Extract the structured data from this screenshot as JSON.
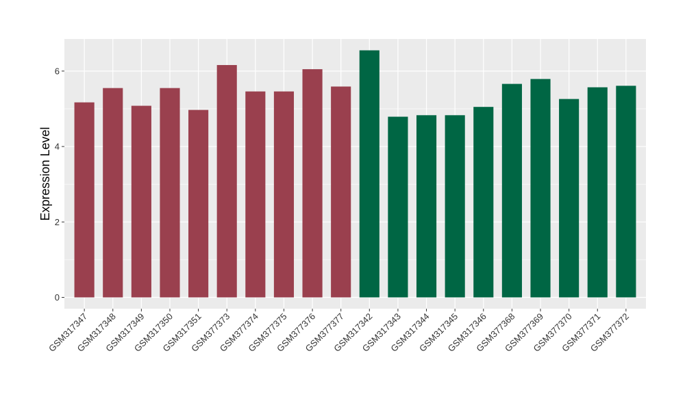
{
  "chart_data": {
    "type": "bar",
    "ylabel": "Expression Level",
    "xlabel": "",
    "title": "",
    "ylim": [
      -0.3,
      6.85
    ],
    "yticks": [
      0,
      2,
      4,
      6
    ],
    "grid": true,
    "panel_background": "#EBEBEB",
    "grid_color": "#FFFFFF",
    "categories": [
      "GSM317347",
      "GSM317348",
      "GSM317349",
      "GSM317350",
      "GSM317351",
      "GSM377373",
      "GSM377374",
      "GSM377375",
      "GSM377376",
      "GSM377377",
      "GSM317342",
      "GSM317343",
      "GSM317344",
      "GSM317345",
      "GSM317346",
      "GSM377368",
      "GSM377369",
      "GSM377370",
      "GSM377371",
      "GSM377372"
    ],
    "values": [
      5.17,
      5.55,
      5.08,
      5.55,
      4.97,
      6.16,
      5.46,
      5.46,
      6.05,
      5.59,
      6.55,
      4.79,
      4.83,
      4.83,
      5.05,
      5.66,
      5.79,
      5.26,
      5.57,
      5.61
    ],
    "group_colors": [
      "#9A404E",
      "#9A404E",
      "#9A404E",
      "#9A404E",
      "#9A404E",
      "#9A404E",
      "#9A404E",
      "#9A404E",
      "#9A404E",
      "#9A404E",
      "#006644",
      "#006644",
      "#006644",
      "#006644",
      "#006644",
      "#006644",
      "#006644",
      "#006644",
      "#006644",
      "#006644"
    ]
  }
}
